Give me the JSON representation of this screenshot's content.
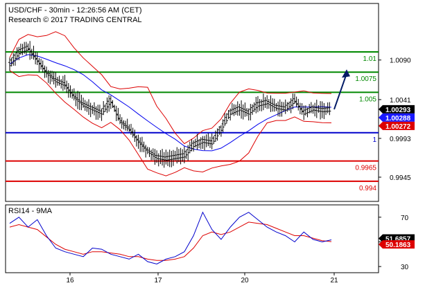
{
  "header": {
    "title": "USD/CHF - 30min - 12:26:56 AM (CET)",
    "copyright": "Research © 2017 TRADING CENTRAL"
  },
  "rsi_panel": {
    "label": "RSI14 - 9MA"
  },
  "colors": {
    "green_level": "#008800",
    "blue_level": "#0000cc",
    "red_level": "#dd0000",
    "bollinger": "#dd0000",
    "moving_average": "#0000ee",
    "price_bars": "#000000",
    "rsi_line": "#0000cc",
    "rsi_ma": "#dd0000",
    "forecast_arrow": "#001a66",
    "badge_dark": "#000000",
    "badge_blue": "#1a1aff",
    "badge_red": "#dd0000"
  },
  "chart_data": [
    {
      "type": "line",
      "title": "USD/CHF - 30min - 12:26:56 AM (CET)",
      "x_tick_labels": [
        "16",
        "17",
        "20",
        "21"
      ],
      "y_tick_labels": [
        "1.0090",
        "1.0041",
        "0.9993",
        "0.9945"
      ],
      "ylim": [
        0.9915,
        1.016
      ],
      "levels": [
        {
          "label": "1.01",
          "value": 1.01,
          "color": "green"
        },
        {
          "label": "1.0075",
          "value": 1.0075,
          "color": "green"
        },
        {
          "label": "1.005",
          "value": 1.005,
          "color": "green"
        },
        {
          "label": "1",
          "value": 1.0,
          "color": "blue"
        },
        {
          "label": "0.9965",
          "value": 0.9965,
          "color": "red"
        },
        {
          "label": "0.994",
          "value": 0.994,
          "color": "red"
        }
      ],
      "price_badges": [
        {
          "label": "1.00293",
          "value": 1.00293,
          "style": "dark"
        },
        {
          "label": "1.00288",
          "value": 1.00288,
          "style": "blue"
        },
        {
          "label": "1.00272",
          "value": 1.00272,
          "style": "red"
        }
      ],
      "price_path": [
        1.0085,
        1.01,
        1.0105,
        1.009,
        1.0075,
        1.0065,
        1.006,
        1.0045,
        1.0035,
        1.003,
        1.0025,
        1.004,
        1.0015,
        1.0005,
        0.999,
        0.9978,
        0.997,
        0.9968,
        0.997,
        0.9972,
        0.9985,
        0.999,
        0.9988,
        1.0005,
        1.0025,
        1.003,
        1.0025,
        1.0035,
        1.0038,
        1.0032,
        1.003,
        1.004,
        1.0025,
        1.003,
        1.0028,
        1.0029
      ],
      "forecast_target": 1.0075
    },
    {
      "type": "line",
      "title": "RSI14 - 9MA",
      "y_tick_labels": [
        "70",
        "50",
        "30"
      ],
      "ylim": [
        25,
        80
      ],
      "series": [
        {
          "name": "RSI14",
          "values": [
            65,
            70,
            62,
            68,
            55,
            45,
            42,
            40,
            38,
            45,
            44,
            40,
            38,
            36,
            40,
            34,
            32,
            36,
            38,
            42,
            55,
            74,
            60,
            52,
            62,
            70,
            74,
            68,
            62,
            58,
            55,
            50,
            58,
            52,
            50,
            51.6857
          ]
        },
        {
          "name": "9MA",
          "values": [
            62,
            64,
            62,
            60,
            54,
            48,
            44,
            42,
            40,
            42,
            42,
            41,
            40,
            38,
            38,
            36,
            35,
            35,
            36,
            38,
            45,
            55,
            58,
            56,
            58,
            62,
            66,
            65,
            64,
            61,
            58,
            55,
            55,
            53,
            51,
            50.1863
          ]
        }
      ],
      "value_badges": [
        {
          "label": "51.6857",
          "value": 51.6857,
          "style": "dark"
        },
        {
          "label": "50.1863",
          "value": 50.1863,
          "style": "red"
        }
      ]
    }
  ]
}
